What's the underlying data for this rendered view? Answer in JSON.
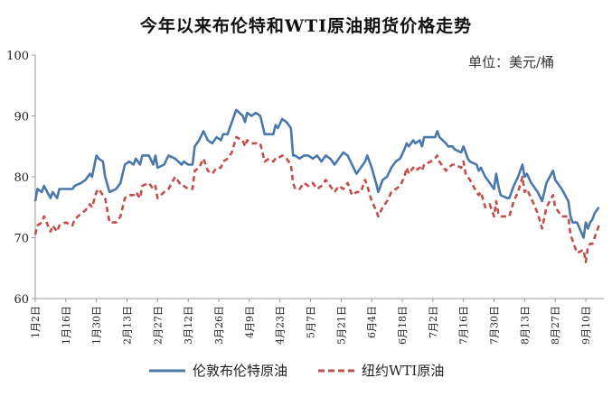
{
  "chart_data": {
    "type": "line",
    "title": "今年以来布伦特和WTI原油期货价格走势",
    "unit_label": "单位：美元/桶",
    "ylim": [
      60,
      100
    ],
    "yticks": [
      60,
      70,
      80,
      90,
      100
    ],
    "xtick_labels": [
      "1月2日",
      "1月16日",
      "1月30日",
      "2月13日",
      "2月27日",
      "3月12日",
      "3月26日",
      "4月9日",
      "4月23日",
      "5月7日",
      "5月21日",
      "6月4日",
      "6月18日",
      "7月2日",
      "7月16日",
      "7月30日",
      "8月13日",
      "8月27日",
      "9月10日"
    ],
    "grid": false,
    "legend_position": "bottom",
    "x": [
      "1-2",
      "1-3",
      "1-5",
      "1-6",
      "1-9",
      "1-10",
      "1-12",
      "1-13",
      "1-16",
      "1-19",
      "1-20",
      "1-23",
      "1-25",
      "1-27",
      "1-28",
      "1-30",
      "1-31",
      "2-2",
      "2-3",
      "2-5",
      "2-8",
      "2-10",
      "2-12",
      "2-14",
      "2-16",
      "2-17",
      "2-19",
      "2-20",
      "2-23",
      "2-25",
      "2-26",
      "2-27",
      "3-1",
      "3-3",
      "3-6",
      "3-9",
      "3-10",
      "3-12",
      "3-14",
      "3-15",
      "3-17",
      "3-19",
      "3-21",
      "3-23",
      "3-25",
      "3-27",
      "3-28",
      "3-30",
      "4-1",
      "4-3",
      "4-6",
      "4-7",
      "4-8",
      "4-10",
      "4-12",
      "4-14",
      "4-16",
      "4-18",
      "4-20",
      "4-21",
      "4-22",
      "4-24",
      "4-26",
      "4-28",
      "4-29",
      "4-30",
      "5-2",
      "5-4",
      "5-6",
      "5-8",
      "5-10",
      "5-12",
      "5-14",
      "5-16",
      "5-18",
      "5-20",
      "5-22",
      "5-24",
      "5-26",
      "5-28",
      "5-30",
      "6-1",
      "6-2",
      "6-4",
      "6-6",
      "6-7",
      "6-9",
      "6-11",
      "6-13",
      "6-15",
      "6-17",
      "6-19",
      "6-20",
      "6-21",
      "6-23",
      "6-24",
      "6-26",
      "6-27",
      "6-28",
      "7-1",
      "7-3",
      "7-4",
      "7-5",
      "7-8",
      "7-9",
      "7-11",
      "7-12",
      "7-15",
      "7-16",
      "7-17",
      "7-18",
      "7-19",
      "7-22",
      "7-23",
      "7-24",
      "7-26",
      "7-28",
      "7-30",
      "7-31",
      "8-1",
      "8-2",
      "8-5",
      "8-6",
      "8-8",
      "8-10",
      "8-12",
      "8-13",
      "8-14",
      "8-16",
      "8-19",
      "8-21",
      "8-23",
      "8-26",
      "8-27",
      "8-28",
      "8-30",
      "9-2",
      "9-3",
      "9-4",
      "9-6",
      "9-9",
      "9-10",
      "9-11",
      "9-12",
      "9-13",
      "9-14",
      "9-16"
    ],
    "series": [
      {
        "name": "伦敦布伦特原油",
        "color": "#4a78aa",
        "style": "solid",
        "values": [
          76,
          78,
          77.5,
          78.5,
          76.5,
          77.5,
          76.5,
          78,
          78,
          78,
          78.5,
          79,
          79.5,
          80.5,
          80,
          83.5,
          83,
          82.5,
          80,
          77.5,
          78,
          79,
          82,
          82.5,
          82,
          83,
          82,
          83.5,
          83.5,
          82,
          83.5,
          81.5,
          82,
          83.5,
          83,
          82,
          82.5,
          82,
          82,
          85,
          86,
          87.5,
          86,
          85.5,
          86.5,
          86,
          87,
          87,
          89,
          91,
          90,
          89,
          90.5,
          90,
          90.5,
          90,
          87,
          87,
          87,
          88.5,
          88,
          89.5,
          89,
          88,
          83.5,
          83.5,
          83,
          83.5,
          83.5,
          83,
          83.5,
          82.5,
          83.5,
          83,
          82,
          83,
          84,
          83.5,
          82,
          80.5,
          81.5,
          82.5,
          83.5,
          81.5,
          79,
          77.5,
          79.5,
          80,
          81.5,
          82.5,
          83,
          84.5,
          85.5,
          85,
          86,
          85.5,
          86,
          85,
          86.5,
          86.5,
          86.5,
          87.5,
          86.5,
          85.5,
          85,
          85,
          84.5,
          84,
          85,
          84,
          83,
          82.5,
          82,
          81,
          81.5,
          80,
          79,
          78,
          80.5,
          78.5,
          77,
          76.5,
          76.5,
          78.5,
          80,
          82,
          80,
          80.5,
          79,
          77.5,
          76,
          79,
          81,
          79.5,
          79,
          78,
          76,
          73.5,
          72.5,
          72.5,
          70,
          72.5,
          71.5,
          72.5,
          73,
          74,
          75
        ]
      },
      {
        "name": "纽约WTI原油",
        "color": "#c0504d",
        "style": "dashed",
        "values": [
          70.5,
          72,
          72.5,
          73.5,
          71,
          72,
          71,
          72,
          72.5,
          72,
          73,
          74,
          74.5,
          75.5,
          75,
          77.5,
          78,
          77,
          76.5,
          72.5,
          72.5,
          73.5,
          76.5,
          77,
          77,
          77.5,
          76.5,
          78.5,
          79,
          78,
          78.5,
          76.5,
          77.5,
          78,
          80,
          78.5,
          78.5,
          78,
          78,
          81,
          81.5,
          83,
          81,
          80.5,
          81.5,
          81.5,
          82.5,
          83,
          84,
          86.5,
          86,
          85,
          86,
          85.5,
          85.5,
          85.5,
          82.5,
          83,
          82.5,
          83,
          83,
          83.5,
          83,
          82,
          79,
          78,
          78,
          79,
          78.5,
          79,
          78,
          78.5,
          79.5,
          78.5,
          77.5,
          78.5,
          78,
          79,
          77,
          77.5,
          77.5,
          79.5,
          78.5,
          76,
          74.5,
          73.5,
          75,
          76,
          77.5,
          78,
          78.5,
          80,
          81.5,
          80.5,
          81.5,
          81,
          81.5,
          81,
          82,
          82.5,
          83,
          83.5,
          82.5,
          81,
          81.5,
          82,
          82,
          81.5,
          82.5,
          80.5,
          80,
          79.5,
          77.5,
          77,
          77.5,
          75,
          75.5,
          73.5,
          76,
          74,
          73.5,
          73.5,
          73.5,
          76,
          77.5,
          80,
          77.5,
          78,
          76.5,
          74,
          71.5,
          75,
          77,
          75,
          74.5,
          73.5,
          73.5,
          70.5,
          69.5,
          67.5,
          68,
          66,
          68.5,
          69,
          69,
          70,
          72
        ]
      }
    ]
  }
}
